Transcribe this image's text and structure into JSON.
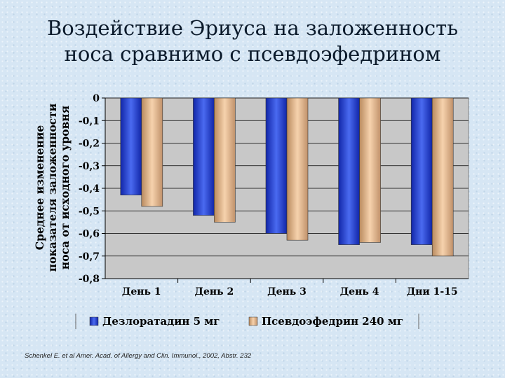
{
  "title": {
    "line1": "Воздействие Эриуса на заложенность",
    "line2": "носа сравнимо с псевдоэфедрином"
  },
  "source": "Schenkel E. et al Amer. Acad. of Allergy and Clin. Immunol., 2002, Abstr. 232",
  "colors": {
    "series1": "#2a47d6",
    "series2": "#f0c49a",
    "plot_bg": "#c8c8c8",
    "grid": "#000000"
  },
  "chart_data": {
    "type": "bar",
    "categories": [
      "День 1",
      "День 2",
      "День 3",
      "День 4",
      "Дни 1-15"
    ],
    "series": [
      {
        "name": "Дезлоратадин 5 мг",
        "values": [
          -0.43,
          -0.52,
          -0.6,
          -0.65,
          -0.65
        ]
      },
      {
        "name": "Псевдоэфедрин 240 мг",
        "values": [
          -0.48,
          -0.55,
          -0.63,
          -0.64,
          -0.7
        ]
      }
    ],
    "ylabel": [
      "Среднее изменение",
      "показателя заложенности",
      "носа от исходного уровня"
    ],
    "ylim": [
      -0.8,
      0
    ],
    "yticks": [
      "0",
      "-0,1",
      "-0,2",
      "-0,3",
      "-0,4",
      "-0,5",
      "-0,6",
      "-0,7",
      "-0,8"
    ],
    "grid": true,
    "legend_position": "bottom"
  }
}
